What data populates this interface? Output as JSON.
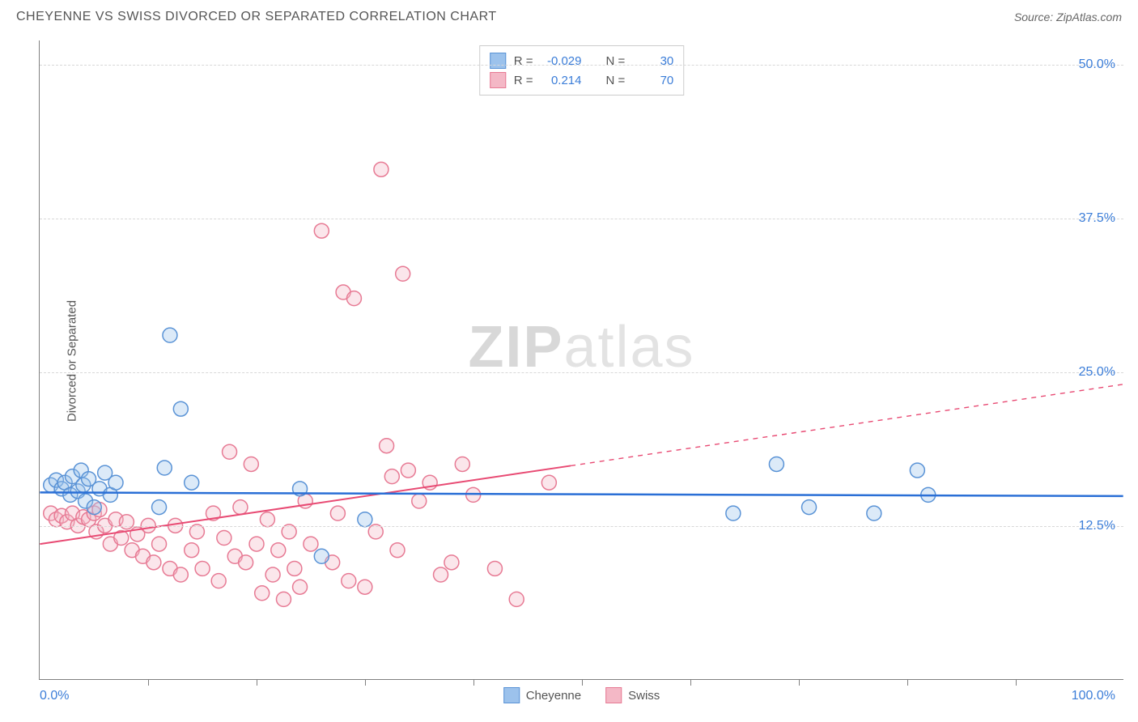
{
  "header": {
    "title": "CHEYENNE VS SWISS DIVORCED OR SEPARATED CORRELATION CHART",
    "source_label": "Source: ",
    "source_name": "ZipAtlas.com"
  },
  "watermark": {
    "bold": "ZIP",
    "light": "atlas"
  },
  "chart": {
    "type": "scatter",
    "ylabel": "Divorced or Separated",
    "xlim": [
      0,
      100
    ],
    "ylim": [
      0,
      52
    ],
    "yticks": [
      {
        "v": 12.5,
        "label": "12.5%"
      },
      {
        "v": 25.0,
        "label": "25.0%"
      },
      {
        "v": 37.5,
        "label": "37.5%"
      },
      {
        "v": 50.0,
        "label": "50.0%"
      }
    ],
    "xticks_minor": [
      10,
      20,
      30,
      40,
      50,
      60,
      70,
      80,
      90
    ],
    "xticks_labels": [
      {
        "v": 0,
        "label": "0.0%",
        "align": "left"
      },
      {
        "v": 100,
        "label": "100.0%",
        "align": "right"
      }
    ],
    "grid_color": "#d8d8d8",
    "background_color": "#ffffff",
    "marker_radius": 9,
    "marker_stroke_width": 1.5,
    "marker_fill_opacity": 0.35,
    "series": {
      "cheyenne": {
        "label": "Cheyenne",
        "fill": "#9cc2ec",
        "stroke": "#5a93d6",
        "R": "-0.029",
        "N": "30",
        "trend": {
          "y_at_x0": 15.2,
          "y_at_x100": 14.9,
          "color": "#2a6fd6",
          "width": 2.5,
          "solid_until": 100
        },
        "points": [
          [
            1,
            15.8
          ],
          [
            1.5,
            16.2
          ],
          [
            2,
            15.5
          ],
          [
            2.3,
            16.0
          ],
          [
            2.8,
            15.0
          ],
          [
            3,
            16.5
          ],
          [
            3.5,
            15.3
          ],
          [
            3.8,
            17.0
          ],
          [
            4,
            15.8
          ],
          [
            4.2,
            14.5
          ],
          [
            4.5,
            16.3
          ],
          [
            5,
            14.0
          ],
          [
            5.5,
            15.5
          ],
          [
            6,
            16.8
          ],
          [
            6.5,
            15.0
          ],
          [
            7,
            16.0
          ],
          [
            11,
            14.0
          ],
          [
            11.5,
            17.2
          ],
          [
            12,
            28.0
          ],
          [
            13,
            22.0
          ],
          [
            14,
            16.0
          ],
          [
            24,
            15.5
          ],
          [
            26,
            10.0
          ],
          [
            30,
            13.0
          ],
          [
            64,
            13.5
          ],
          [
            68,
            17.5
          ],
          [
            71,
            14.0
          ],
          [
            77,
            13.5
          ],
          [
            81,
            17.0
          ],
          [
            82,
            15.0
          ]
        ]
      },
      "swiss": {
        "label": "Swiss",
        "fill": "#f4b8c6",
        "stroke": "#e77a94",
        "R": "0.214",
        "N": "70",
        "trend": {
          "y_at_x0": 11.0,
          "y_at_x100": 24.0,
          "color": "#e84a73",
          "width": 2,
          "solid_until": 49
        },
        "points": [
          [
            1,
            13.5
          ],
          [
            1.5,
            13.0
          ],
          [
            2,
            13.3
          ],
          [
            2.5,
            12.8
          ],
          [
            3,
            13.5
          ],
          [
            3.5,
            12.5
          ],
          [
            4,
            13.2
          ],
          [
            4.5,
            13.0
          ],
          [
            5,
            13.5
          ],
          [
            5.2,
            12.0
          ],
          [
            5.5,
            13.8
          ],
          [
            6,
            12.5
          ],
          [
            6.5,
            11.0
          ],
          [
            7,
            13.0
          ],
          [
            7.5,
            11.5
          ],
          [
            8,
            12.8
          ],
          [
            8.5,
            10.5
          ],
          [
            9,
            11.8
          ],
          [
            9.5,
            10.0
          ],
          [
            10,
            12.5
          ],
          [
            10.5,
            9.5
          ],
          [
            11,
            11.0
          ],
          [
            12,
            9.0
          ],
          [
            12.5,
            12.5
          ],
          [
            13,
            8.5
          ],
          [
            14,
            10.5
          ],
          [
            14.5,
            12.0
          ],
          [
            15,
            9.0
          ],
          [
            16,
            13.5
          ],
          [
            16.5,
            8.0
          ],
          [
            17,
            11.5
          ],
          [
            17.5,
            18.5
          ],
          [
            18,
            10.0
          ],
          [
            18.5,
            14.0
          ],
          [
            19,
            9.5
          ],
          [
            19.5,
            17.5
          ],
          [
            20,
            11.0
          ],
          [
            20.5,
            7.0
          ],
          [
            21,
            13.0
          ],
          [
            21.5,
            8.5
          ],
          [
            22,
            10.5
          ],
          [
            22.5,
            6.5
          ],
          [
            23,
            12.0
          ],
          [
            23.5,
            9.0
          ],
          [
            24,
            7.5
          ],
          [
            24.5,
            14.5
          ],
          [
            25,
            11.0
          ],
          [
            26,
            36.5
          ],
          [
            27,
            9.5
          ],
          [
            27.5,
            13.5
          ],
          [
            28,
            31.5
          ],
          [
            28.5,
            8.0
          ],
          [
            29,
            31.0
          ],
          [
            30,
            7.5
          ],
          [
            31,
            12.0
          ],
          [
            31.5,
            41.5
          ],
          [
            32,
            19.0
          ],
          [
            32.5,
            16.5
          ],
          [
            33,
            10.5
          ],
          [
            33.5,
            33.0
          ],
          [
            34,
            17.0
          ],
          [
            35,
            14.5
          ],
          [
            36,
            16.0
          ],
          [
            37,
            8.5
          ],
          [
            38,
            9.5
          ],
          [
            39,
            17.5
          ],
          [
            40,
            15.0
          ],
          [
            42,
            9.0
          ],
          [
            44,
            6.5
          ],
          [
            47,
            16.0
          ]
        ]
      }
    },
    "legend_top": {
      "r_label": "R =",
      "n_label": "N ="
    }
  }
}
